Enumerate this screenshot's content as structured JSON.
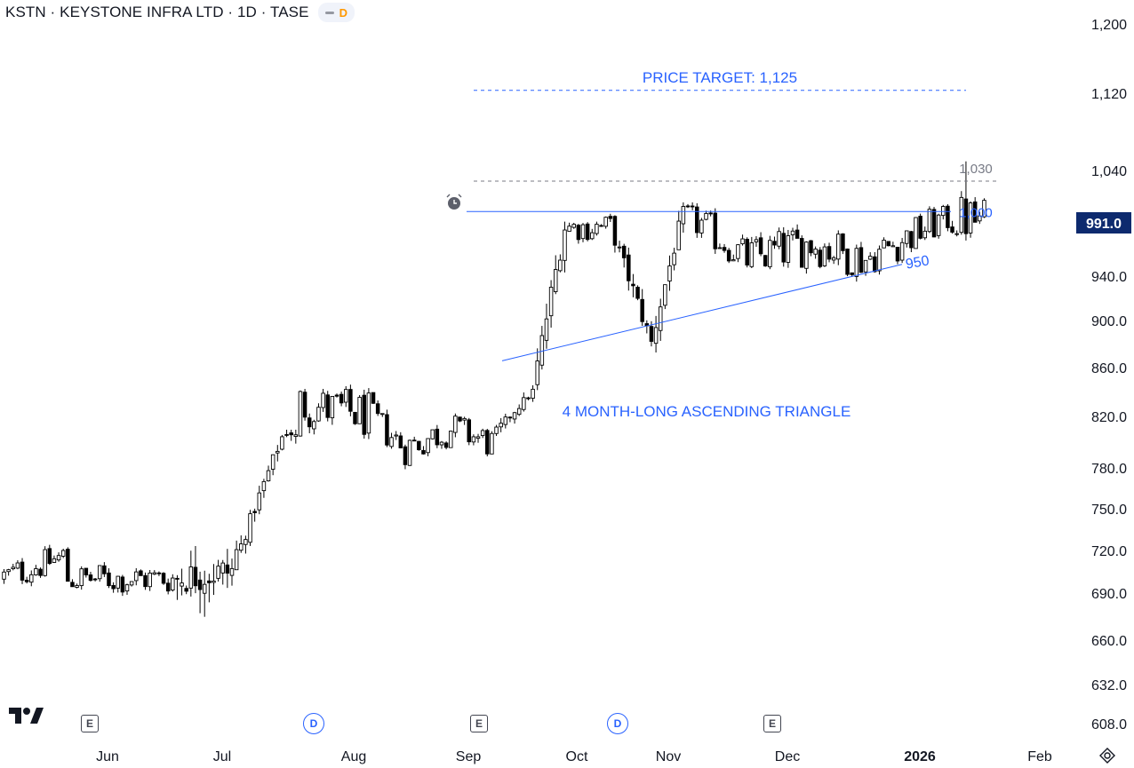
{
  "header": {
    "title": "KSTN · KEYSTONE INFRA LTD · 1D · TASE",
    "badge": "D"
  },
  "colors": {
    "up": "#ffffff",
    "down": "#000000",
    "wick": "#000000",
    "annotation_blue": "#2962ff",
    "annotation_gray": "#787b86",
    "last_price_bg": "#0d2a6e"
  },
  "icons": {
    "logo": "tradingview-logo-icon",
    "alert": "alarm-clock-icon",
    "settings": "chart-settings-icon"
  },
  "events": [
    {
      "type": "E",
      "month": "Jun"
    },
    {
      "type": "D",
      "month": "Jul-Aug"
    },
    {
      "type": "E",
      "month": "Sep"
    },
    {
      "type": "D",
      "month": "Oct"
    },
    {
      "type": "E",
      "month": "Dec"
    }
  ],
  "chart_data": {
    "type": "candlestick",
    "scale": "log",
    "title": "KSTN · KEYSTONE INFRA LTD · 1D · TASE",
    "y_ticks": [
      "1,200",
      "1,120",
      "1,040",
      "940.0",
      "900.0",
      "860.0",
      "820.0",
      "780.0",
      "750.0",
      "720.0",
      "690.0",
      "660.0",
      "632.0",
      "608.0"
    ],
    "x_ticks": [
      "Jun",
      "Jul",
      "Aug",
      "Sep",
      "Oct",
      "Nov",
      "Dec",
      "2026",
      "Feb"
    ],
    "last_price": "991.0",
    "annotations": {
      "price_target": "PRICE TARGET: 1,125",
      "resistance": "1,000",
      "breakout_level": "1,030",
      "support": "950",
      "pattern": "4 MONTH-LONG ASCENDING TRIANGLE"
    },
    "levels": {
      "price_target": 1125,
      "breakout": 1030,
      "resistance": 1000
    },
    "support_line": {
      "from_price": 865,
      "to_price": 950
    },
    "segments": [
      [
        14,
        700,
        720,
        680,
        715,
        "range"
      ],
      [
        24,
        700,
        720,
        680,
        700,
        "range"
      ],
      [
        13,
        700,
        870,
        670,
        705,
        "trend"
      ],
      [
        14,
        705,
        805,
        720,
        830,
        "trend"
      ],
      [
        16,
        830,
        850,
        780,
        820,
        "range"
      ],
      [
        8,
        820,
        830,
        780,
        795,
        "range"
      ],
      [
        10,
        795,
        830,
        780,
        810,
        "range"
      ],
      [
        8,
        810,
        820,
        770,
        800,
        "range"
      ],
      [
        10,
        800,
        850,
        795,
        840,
        "trend"
      ],
      [
        7,
        840,
        1005,
        830,
        985,
        "trend"
      ],
      [
        10,
        985,
        1000,
        950,
        985,
        "range"
      ],
      [
        9,
        985,
        1000,
        870,
        880,
        "trend"
      ],
      [
        7,
        880,
        1005,
        870,
        1000,
        "trend"
      ],
      [
        14,
        1000,
        1005,
        940,
        955,
        "range"
      ],
      [
        14,
        955,
        1000,
        925,
        970,
        "range"
      ],
      [
        12,
        970,
        1005,
        930,
        955,
        "range"
      ],
      [
        18,
        955,
        1005,
        940,
        995,
        "range"
      ],
      [
        8,
        995,
        1050,
        965,
        991,
        "range"
      ]
    ]
  }
}
